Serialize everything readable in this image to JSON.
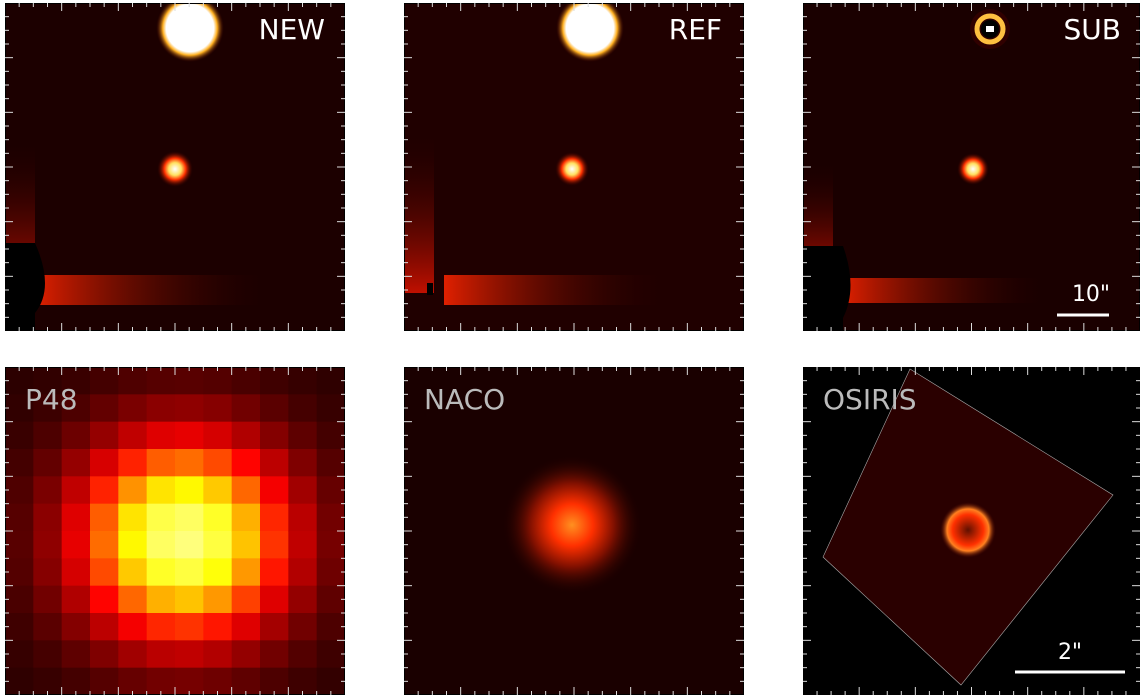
{
  "panels": [
    {
      "label": "NEW"
    },
    {
      "label": "REF"
    },
    {
      "label": "SUB",
      "scale_bar": "10\""
    },
    {
      "label": "P48"
    },
    {
      "label": "NACO"
    },
    {
      "label": "OSIRIS",
      "scale_bar": "2\""
    }
  ]
}
